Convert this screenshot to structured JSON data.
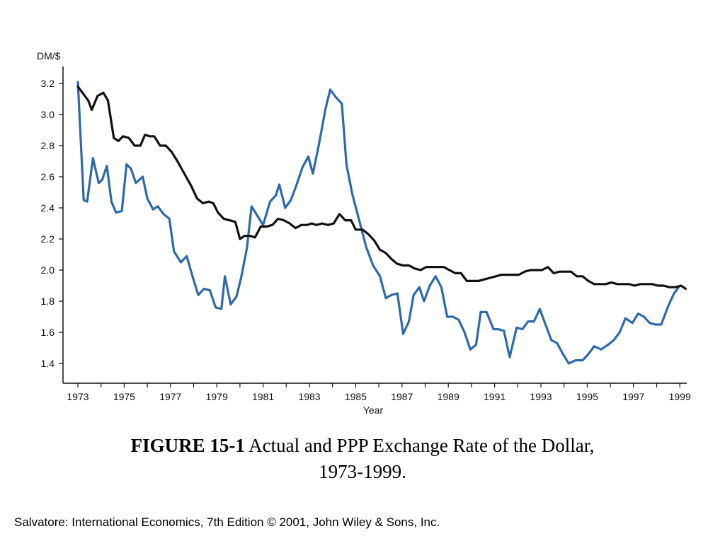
{
  "chart_data": {
    "type": "line",
    "ylabel": "DM/$",
    "xlabel": "Year",
    "xlim": [
      1972.75,
      1999.9
    ],
    "ylim": [
      1.3,
      3.3
    ],
    "yticks": [
      "1.4",
      "1.6",
      "1.8",
      "2.0",
      "2.2",
      "2.4",
      "2.6",
      "2.8",
      "3.0",
      "3.2"
    ],
    "xticks": [
      "1973",
      "1975",
      "1977",
      "1979",
      "1981",
      "1983",
      "1985",
      "1987",
      "1989",
      "1991",
      "1993",
      "1995",
      "1997",
      "1999"
    ],
    "grid": false,
    "series": [
      {
        "color": "#2e6aa8",
        "points": [
          [
            1973.0,
            3.21
          ],
          [
            1973.25,
            2.45
          ],
          [
            1973.4,
            2.44
          ],
          [
            1973.65,
            2.72
          ],
          [
            1973.9,
            2.56
          ],
          [
            1974.05,
            2.58
          ],
          [
            1974.25,
            2.67
          ],
          [
            1974.45,
            2.44
          ],
          [
            1974.65,
            2.37
          ],
          [
            1974.9,
            2.38
          ],
          [
            1975.1,
            2.68
          ],
          [
            1975.3,
            2.65
          ],
          [
            1975.5,
            2.56
          ],
          [
            1975.8,
            2.6
          ],
          [
            1976.0,
            2.46
          ],
          [
            1976.25,
            2.39
          ],
          [
            1976.45,
            2.41
          ],
          [
            1976.7,
            2.36
          ],
          [
            1976.95,
            2.33
          ],
          [
            1977.15,
            2.12
          ],
          [
            1977.45,
            2.05
          ],
          [
            1977.7,
            2.09
          ],
          [
            1977.95,
            1.96
          ],
          [
            1978.2,
            1.84
          ],
          [
            1978.45,
            1.88
          ],
          [
            1978.7,
            1.87
          ],
          [
            1978.95,
            1.76
          ],
          [
            1979.2,
            1.75
          ],
          [
            1979.35,
            1.96
          ],
          [
            1979.6,
            1.78
          ],
          [
            1979.85,
            1.83
          ],
          [
            1980.05,
            1.95
          ],
          [
            1980.3,
            2.14
          ],
          [
            1980.5,
            2.41
          ],
          [
            1980.75,
            2.35
          ],
          [
            1981.0,
            2.29
          ],
          [
            1981.3,
            2.44
          ],
          [
            1981.55,
            2.48
          ],
          [
            1981.7,
            2.55
          ],
          [
            1981.95,
            2.4
          ],
          [
            1982.2,
            2.45
          ],
          [
            1982.45,
            2.55
          ],
          [
            1982.7,
            2.66
          ],
          [
            1982.95,
            2.73
          ],
          [
            1983.15,
            2.62
          ],
          [
            1983.4,
            2.8
          ],
          [
            1983.7,
            3.04
          ],
          [
            1983.9,
            3.16
          ],
          [
            1984.15,
            3.11
          ],
          [
            1984.4,
            3.07
          ],
          [
            1984.6,
            2.68
          ],
          [
            1984.85,
            2.49
          ],
          [
            1985.15,
            2.32
          ],
          [
            1985.45,
            2.15
          ],
          [
            1985.75,
            2.03
          ],
          [
            1986.05,
            1.96
          ],
          [
            1986.3,
            1.82
          ],
          [
            1986.55,
            1.84
          ],
          [
            1986.8,
            1.85
          ],
          [
            1987.05,
            1.59
          ],
          [
            1987.3,
            1.67
          ],
          [
            1987.5,
            1.84
          ],
          [
            1987.75,
            1.89
          ],
          [
            1987.95,
            1.8
          ],
          [
            1988.2,
            1.9
          ],
          [
            1988.45,
            1.96
          ],
          [
            1988.7,
            1.89
          ],
          [
            1988.95,
            1.7
          ],
          [
            1989.2,
            1.7
          ],
          [
            1989.45,
            1.68
          ],
          [
            1989.7,
            1.6
          ],
          [
            1989.95,
            1.49
          ],
          [
            1990.2,
            1.52
          ],
          [
            1990.4,
            1.73
          ],
          [
            1990.65,
            1.73
          ],
          [
            1990.95,
            1.62
          ],
          [
            1991.15,
            1.62
          ],
          [
            1991.4,
            1.61
          ],
          [
            1991.65,
            1.44
          ],
          [
            1991.95,
            1.63
          ],
          [
            1992.2,
            1.62
          ],
          [
            1992.45,
            1.67
          ],
          [
            1992.7,
            1.67
          ],
          [
            1992.95,
            1.75
          ],
          [
            1993.2,
            1.65
          ],
          [
            1993.45,
            1.55
          ],
          [
            1993.7,
            1.53
          ],
          [
            1993.95,
            1.46
          ],
          [
            1994.2,
            1.4
          ],
          [
            1994.5,
            1.42
          ],
          [
            1994.8,
            1.42
          ],
          [
            1995.05,
            1.46
          ],
          [
            1995.3,
            1.51
          ],
          [
            1995.6,
            1.49
          ],
          [
            1995.9,
            1.52
          ],
          [
            1996.15,
            1.55
          ],
          [
            1996.4,
            1.6
          ],
          [
            1996.65,
            1.69
          ],
          [
            1996.95,
            1.66
          ],
          [
            1997.2,
            1.72
          ],
          [
            1997.45,
            1.7
          ],
          [
            1997.7,
            1.66
          ],
          [
            1997.95,
            1.65
          ],
          [
            1998.2,
            1.65
          ],
          [
            1998.5,
            1.77
          ],
          [
            1998.75,
            1.85
          ],
          [
            1998.95,
            1.89
          ]
        ]
      },
      {
        "color": "#111111",
        "points": [
          [
            1973.0,
            3.18
          ],
          [
            1973.2,
            3.14
          ],
          [
            1973.45,
            3.09
          ],
          [
            1973.6,
            3.03
          ],
          [
            1973.85,
            3.12
          ],
          [
            1974.1,
            3.14
          ],
          [
            1974.3,
            3.09
          ],
          [
            1974.55,
            2.85
          ],
          [
            1974.75,
            2.83
          ],
          [
            1974.95,
            2.86
          ],
          [
            1975.2,
            2.85
          ],
          [
            1975.45,
            2.8
          ],
          [
            1975.7,
            2.8
          ],
          [
            1975.9,
            2.87
          ],
          [
            1976.1,
            2.86
          ],
          [
            1976.3,
            2.86
          ],
          [
            1976.55,
            2.8
          ],
          [
            1976.8,
            2.8
          ],
          [
            1977.05,
            2.76
          ],
          [
            1977.3,
            2.7
          ],
          [
            1977.6,
            2.62
          ],
          [
            1977.9,
            2.54
          ],
          [
            1978.15,
            2.46
          ],
          [
            1978.4,
            2.43
          ],
          [
            1978.65,
            2.44
          ],
          [
            1978.85,
            2.43
          ],
          [
            1979.05,
            2.37
          ],
          [
            1979.3,
            2.33
          ],
          [
            1979.55,
            2.32
          ],
          [
            1979.8,
            2.31
          ],
          [
            1980.0,
            2.2
          ],
          [
            1980.2,
            2.22
          ],
          [
            1980.45,
            2.22
          ],
          [
            1980.65,
            2.21
          ],
          [
            1980.9,
            2.28
          ],
          [
            1981.15,
            2.28
          ],
          [
            1981.4,
            2.29
          ],
          [
            1981.65,
            2.33
          ],
          [
            1981.9,
            2.32
          ],
          [
            1982.15,
            2.3
          ],
          [
            1982.4,
            2.27
          ],
          [
            1982.65,
            2.29
          ],
          [
            1982.9,
            2.29
          ],
          [
            1983.1,
            2.3
          ],
          [
            1983.3,
            2.29
          ],
          [
            1983.55,
            2.3
          ],
          [
            1983.8,
            2.29
          ],
          [
            1984.05,
            2.3
          ],
          [
            1984.3,
            2.36
          ],
          [
            1984.55,
            2.32
          ],
          [
            1984.8,
            2.32
          ],
          [
            1985.0,
            2.26
          ],
          [
            1985.3,
            2.26
          ],
          [
            1985.55,
            2.23
          ],
          [
            1985.8,
            2.19
          ],
          [
            1986.05,
            2.13
          ],
          [
            1986.3,
            2.11
          ],
          [
            1986.55,
            2.07
          ],
          [
            1986.8,
            2.04
          ],
          [
            1987.05,
            2.03
          ],
          [
            1987.3,
            2.03
          ],
          [
            1987.55,
            2.01
          ],
          [
            1987.8,
            2.0
          ],
          [
            1988.05,
            2.02
          ],
          [
            1988.3,
            2.02
          ],
          [
            1988.55,
            2.02
          ],
          [
            1988.8,
            2.02
          ],
          [
            1989.05,
            2.0
          ],
          [
            1989.3,
            1.98
          ],
          [
            1989.55,
            1.98
          ],
          [
            1989.8,
            1.93
          ],
          [
            1990.05,
            1.93
          ],
          [
            1990.3,
            1.93
          ],
          [
            1990.55,
            1.94
          ],
          [
            1990.8,
            1.95
          ],
          [
            1991.05,
            1.96
          ],
          [
            1991.3,
            1.97
          ],
          [
            1991.55,
            1.97
          ],
          [
            1991.8,
            1.97
          ],
          [
            1992.05,
            1.97
          ],
          [
            1992.3,
            1.99
          ],
          [
            1992.55,
            2.0
          ],
          [
            1992.8,
            2.0
          ],
          [
            1993.05,
            2.0
          ],
          [
            1993.3,
            2.02
          ],
          [
            1993.55,
            1.98
          ],
          [
            1993.8,
            1.99
          ],
          [
            1994.05,
            1.99
          ],
          [
            1994.3,
            1.99
          ],
          [
            1994.55,
            1.96
          ],
          [
            1994.8,
            1.96
          ],
          [
            1995.05,
            1.93
          ],
          [
            1995.3,
            1.91
          ],
          [
            1995.55,
            1.91
          ],
          [
            1995.8,
            1.91
          ],
          [
            1996.05,
            1.92
          ],
          [
            1996.3,
            1.91
          ],
          [
            1996.55,
            1.91
          ],
          [
            1996.8,
            1.91
          ],
          [
            1997.05,
            1.9
          ],
          [
            1997.3,
            1.91
          ],
          [
            1997.55,
            1.91
          ],
          [
            1997.8,
            1.91
          ],
          [
            1998.05,
            1.9
          ],
          [
            1998.3,
            1.9
          ],
          [
            1998.55,
            1.89
          ],
          [
            1998.8,
            1.89
          ],
          [
            1999.05,
            1.9
          ],
          [
            1999.25,
            1.88
          ]
        ]
      }
    ]
  },
  "caption": {
    "label": "FIGURE 15-1",
    "text": " Actual and PPP Exchange Rate of the Dollar,",
    "line2": "1973-1999."
  },
  "credit": "Salvatore: International Economics, 7th Edition © 2001, John Wiley & Sons, Inc."
}
